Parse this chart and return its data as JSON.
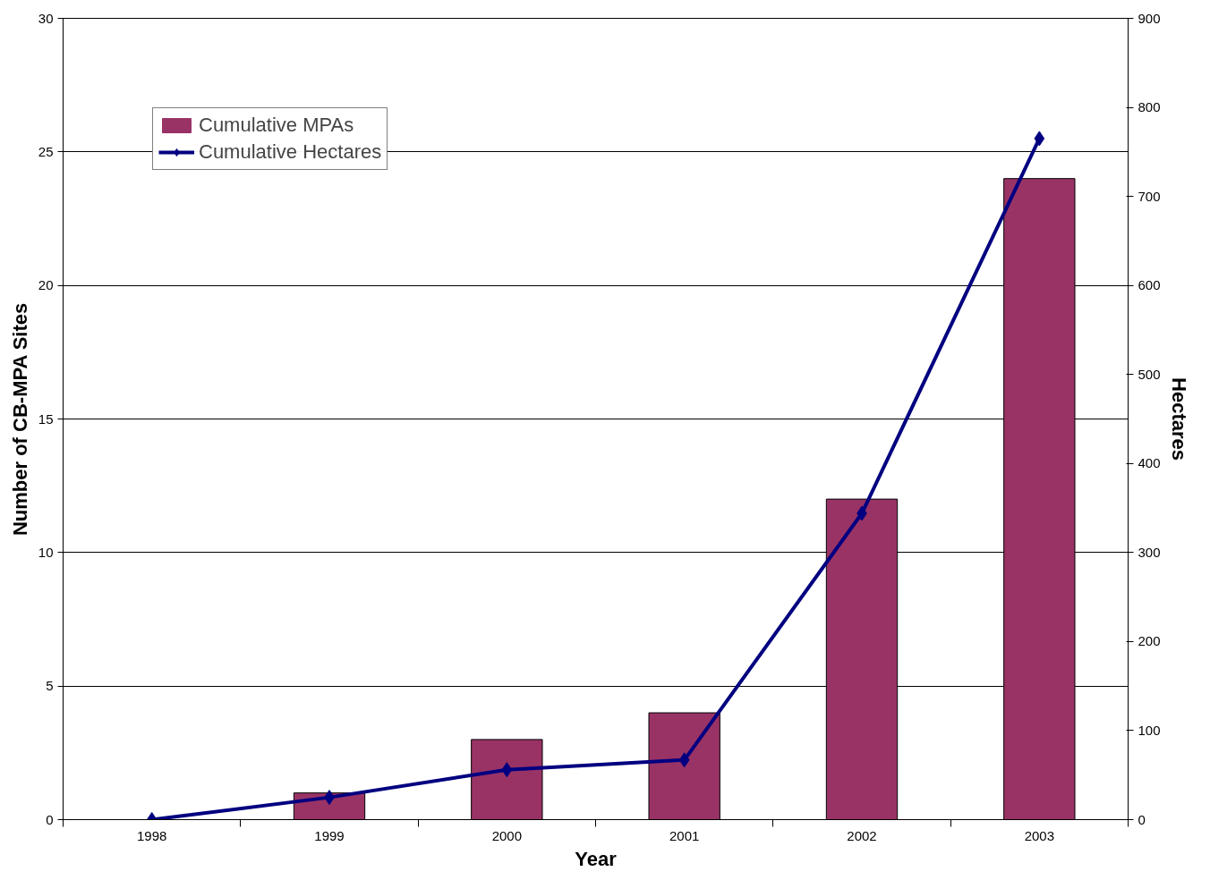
{
  "chart_data": {
    "type": "bar",
    "xlabel": "Year",
    "ylabel": "Number of CB-MPA Sites",
    "y2label": "Hectares",
    "categories": [
      "1998",
      "1999",
      "2000",
      "2001",
      "2002",
      "2003"
    ],
    "series": [
      {
        "name": "Cumulative MPAs",
        "color": "#993366",
        "values": [
          0,
          1,
          3,
          4,
          12,
          24
        ]
      },
      {
        "name": "Cumulative Hectares",
        "type": "line",
        "axis": "y2",
        "color": "#000080",
        "marker": "diamond",
        "values": [
          0,
          25,
          56,
          67,
          344,
          765
        ]
      }
    ],
    "ylim": [
      0,
      30
    ],
    "yticks": [
      0,
      5,
      10,
      15,
      20,
      25,
      30
    ],
    "y2lim": [
      0,
      900
    ],
    "y2ticks": [
      0,
      100,
      200,
      300,
      400,
      500,
      600,
      700,
      800,
      900
    ],
    "grid": "y",
    "legend": "top left"
  }
}
